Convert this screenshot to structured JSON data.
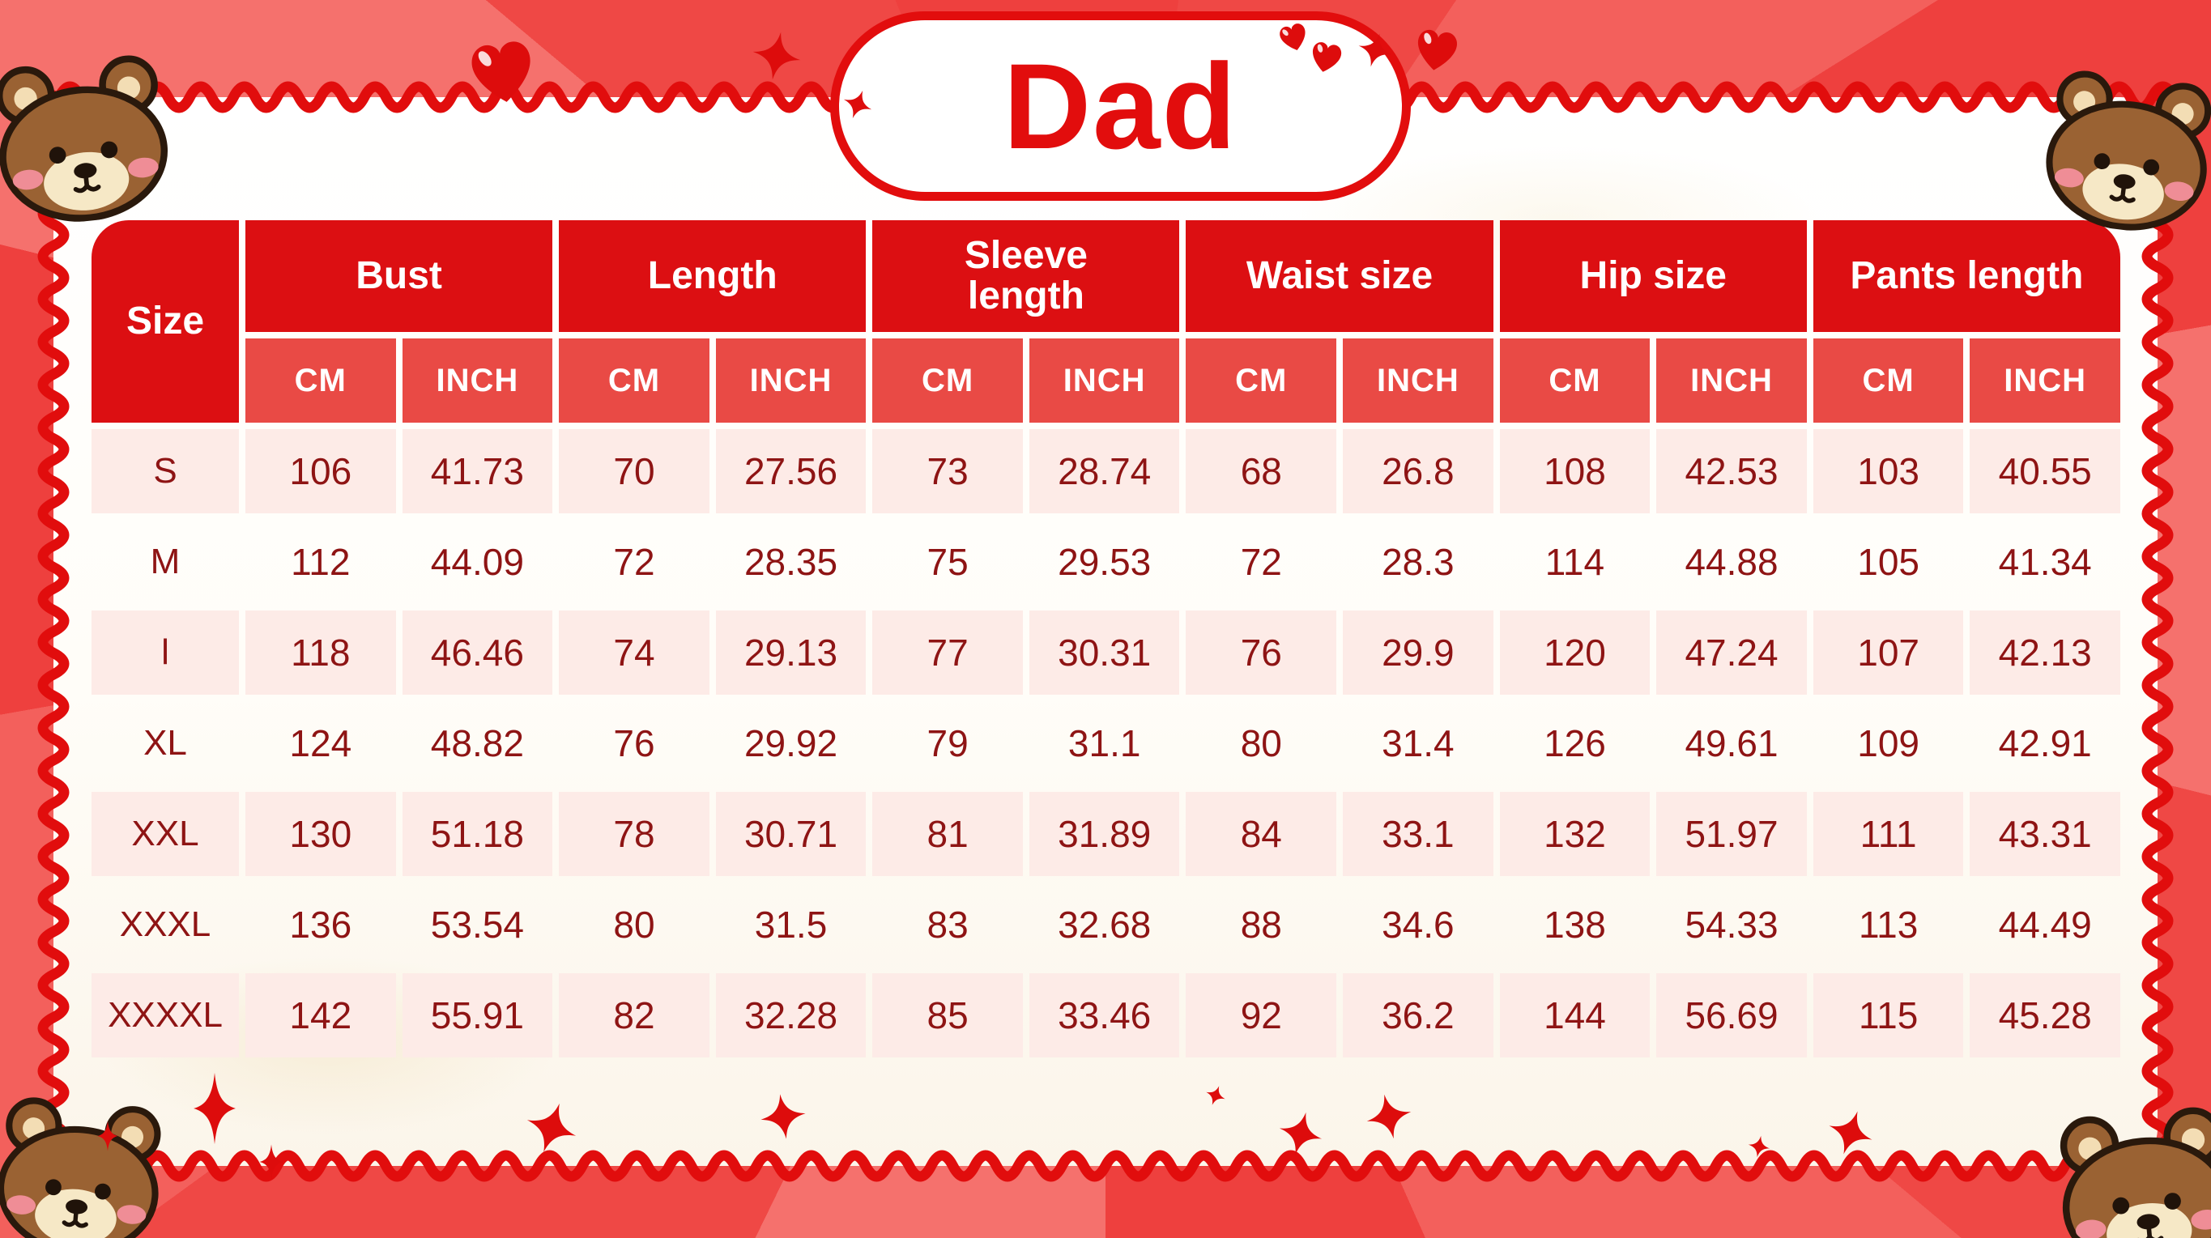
{
  "title": "Dad",
  "table": {
    "size_header": "Size",
    "groups": [
      "Bust",
      "Length",
      "Sleeve length",
      "Waist size",
      "Hip size",
      "Pants length"
    ],
    "unit_cm": "CM",
    "unit_inch": "INCH",
    "rows": [
      {
        "size": "S",
        "values": [
          "106",
          "41.73",
          "70",
          "27.56",
          "73",
          "28.74",
          "68",
          "26.8",
          "108",
          "42.53",
          "103",
          "40.55"
        ]
      },
      {
        "size": "M",
        "values": [
          "112",
          "44.09",
          "72",
          "28.35",
          "75",
          "29.53",
          "72",
          "28.3",
          "114",
          "44.88",
          "105",
          "41.34"
        ]
      },
      {
        "size": "l",
        "values": [
          "118",
          "46.46",
          "74",
          "29.13",
          "77",
          "30.31",
          "76",
          "29.9",
          "120",
          "47.24",
          "107",
          "42.13"
        ]
      },
      {
        "size": "XL",
        "values": [
          "124",
          "48.82",
          "76",
          "29.92",
          "79",
          "31.1",
          "80",
          "31.4",
          "126",
          "49.61",
          "109",
          "42.91"
        ]
      },
      {
        "size": "XXL",
        "values": [
          "130",
          "51.18",
          "78",
          "30.71",
          "81",
          "31.89",
          "84",
          "33.1",
          "132",
          "51.97",
          "111",
          "43.31"
        ]
      },
      {
        "size": "XXXL",
        "values": [
          "136",
          "53.54",
          "80",
          "31.5",
          "83",
          "32.68",
          "88",
          "34.6",
          "138",
          "54.33",
          "113",
          "44.49"
        ]
      },
      {
        "size": "XXXXL",
        "values": [
          "142",
          "55.91",
          "82",
          "32.28",
          "85",
          "33.46",
          "92",
          "36.2",
          "144",
          "56.69",
          "115",
          "45.28"
        ]
      }
    ]
  },
  "colors": {
    "header_red": "#dc0f12",
    "subheader_red": "#e94a45",
    "row_pink": "#fdebe7",
    "value_text": "#8e1414",
    "wavy_border_red": "#e10d0d",
    "title_red": "#e20d0d",
    "background_reds": [
      "#ef4845",
      "#f3605c",
      "#ee403e",
      "#f5716d"
    ],
    "bear_brown": "#9a6233",
    "bear_outline": "#2a190c"
  },
  "chart_data": {
    "type": "table",
    "title": "Dad",
    "column_groups": [
      "Bust",
      "Length",
      "Sleeve length",
      "Waist size",
      "Hip size",
      "Pants length"
    ],
    "columns": [
      "Size",
      "Bust CM",
      "Bust INCH",
      "Length CM",
      "Length INCH",
      "Sleeve length CM",
      "Sleeve length INCH",
      "Waist size CM",
      "Waist size INCH",
      "Hip size CM",
      "Hip size INCH",
      "Pants length CM",
      "Pants length INCH"
    ],
    "rows": [
      [
        "S",
        106,
        41.73,
        70,
        27.56,
        73,
        28.74,
        68,
        26.8,
        108,
        42.53,
        103,
        40.55
      ],
      [
        "M",
        112,
        44.09,
        72,
        28.35,
        75,
        29.53,
        72,
        28.3,
        114,
        44.88,
        105,
        41.34
      ],
      [
        "l",
        118,
        46.46,
        74,
        29.13,
        77,
        30.31,
        76,
        29.9,
        120,
        47.24,
        107,
        42.13
      ],
      [
        "XL",
        124,
        48.82,
        76,
        29.92,
        79,
        31.1,
        80,
        31.4,
        126,
        49.61,
        109,
        42.91
      ],
      [
        "XXL",
        130,
        51.18,
        78,
        30.71,
        81,
        31.89,
        84,
        33.1,
        132,
        51.97,
        111,
        43.31
      ],
      [
        "XXXL",
        136,
        53.54,
        80,
        31.5,
        83,
        32.68,
        88,
        34.6,
        138,
        54.33,
        113,
        44.49
      ],
      [
        "XXXXL",
        142,
        55.91,
        82,
        32.28,
        85,
        33.46,
        92,
        36.2,
        144,
        56.69,
        115,
        45.28
      ]
    ]
  }
}
